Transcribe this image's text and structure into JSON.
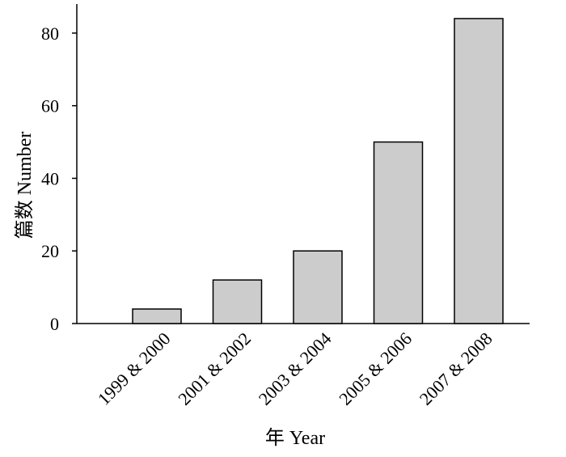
{
  "chart_data": {
    "type": "bar",
    "categories": [
      "1999 & 2000",
      "2001 & 2002",
      "2003 & 2004",
      "2005 & 2006",
      "2007 & 2008"
    ],
    "values": [
      4,
      12,
      20,
      50,
      84
    ],
    "xlabel": "年 Year",
    "ylabel": "篇数 Number",
    "ylim": [
      0,
      88
    ],
    "yticks": [
      0,
      20,
      40,
      60,
      80
    ],
    "grid": false,
    "bar_color": "#cccccc",
    "bar_edge_color": "#000000"
  }
}
